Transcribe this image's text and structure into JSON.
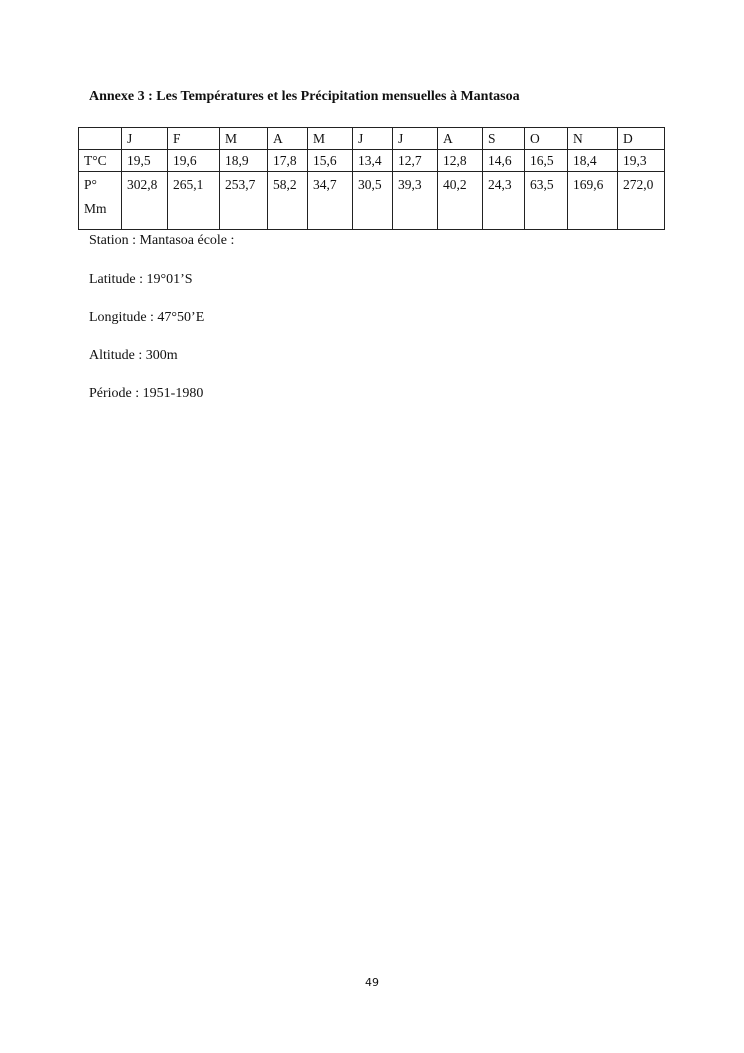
{
  "title": "Annexe 3 : Les Températures et les Précipitation mensuelles à Mantasoa",
  "table": {
    "headers": [
      "",
      "J",
      "F",
      "M",
      "A",
      "M",
      "J",
      "J",
      "A",
      "S",
      "O",
      "N",
      "D"
    ],
    "rows": [
      {
        "label": "T°C",
        "values": [
          "19,5",
          "19,6",
          "18,9",
          "17,8",
          "15,6",
          "13,4",
          "12,7",
          "12,8",
          "14,6",
          "16,5",
          "18,4",
          "19,3"
        ]
      },
      {
        "label": "P° Mm",
        "values": [
          "302,8",
          "265,1",
          "253,7",
          "58,2",
          "34,7",
          "30,5",
          "39,3",
          "40,2",
          "24,3",
          "63,5",
          "169,6",
          "272,0"
        ]
      }
    ]
  },
  "meta": [
    "Station : Mantasoa école :",
    "Latitude : 19°01’S",
    "Longitude : 47°50’E",
    "Altitude : 300m",
    "Période : 1951-1980"
  ],
  "page_number": "49"
}
